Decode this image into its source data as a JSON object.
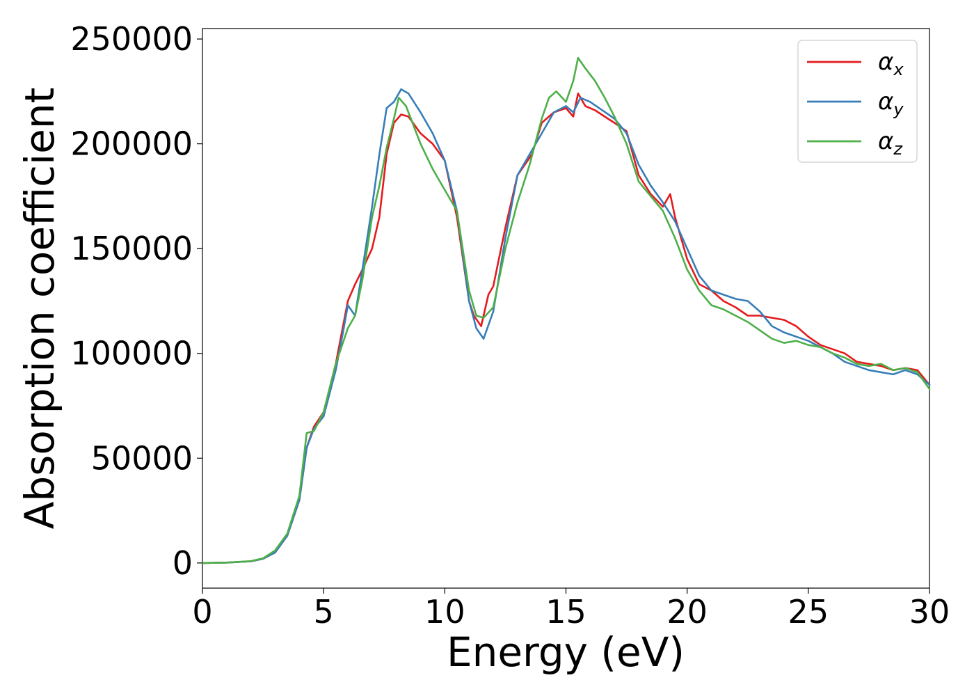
{
  "chart_data": {
    "type": "line",
    "xlabel": "Energy (eV)",
    "ylabel": "Absorption coefficient",
    "xlim": [
      0,
      30
    ],
    "ylim": [
      -12000,
      255000
    ],
    "xticks": [
      0,
      5,
      10,
      15,
      20,
      25,
      30
    ],
    "xtick_labels": [
      "0",
      "5",
      "10",
      "15",
      "20",
      "25",
      "30"
    ],
    "yticks": [
      0,
      50000,
      100000,
      150000,
      200000,
      250000
    ],
    "ytick_labels": [
      "0",
      "50000",
      "100000",
      "150000",
      "200000",
      "250000"
    ],
    "grid": false,
    "legend_position": "top-right",
    "series": [
      {
        "name": "α_x",
        "label_main": "α",
        "label_sub": "x",
        "color": "#e41a1c",
        "x": [
          0,
          1,
          2,
          2.5,
          3,
          3.5,
          4,
          4.3,
          4.6,
          5,
          5.5,
          6,
          6.3,
          6.6,
          7,
          7.3,
          7.6,
          7.9,
          8.2,
          8.5,
          9,
          9.5,
          10,
          10.5,
          11,
          11.2,
          11.5,
          11.8,
          12,
          12.5,
          13,
          13.3,
          13.6,
          14,
          14.5,
          15,
          15.3,
          15.5,
          15.8,
          16.2,
          16.6,
          17,
          17.5,
          18,
          18.5,
          19,
          19.3,
          19.5,
          20,
          20.5,
          21,
          21.5,
          22,
          22.5,
          23,
          23.5,
          24,
          24.5,
          25,
          25.5,
          26,
          26.5,
          27,
          27.5,
          28,
          28.5,
          29,
          29.5,
          30
        ],
        "y": [
          0,
          200,
          800,
          2000,
          5000,
          13000,
          30000,
          55000,
          65000,
          72000,
          95000,
          125000,
          133000,
          140000,
          150000,
          165000,
          195000,
          210000,
          214000,
          213000,
          205000,
          200000,
          192000,
          165000,
          125000,
          118000,
          113000,
          128000,
          132000,
          160000,
          185000,
          190000,
          195000,
          210000,
          215000,
          217000,
          213000,
          224000,
          218000,
          216000,
          213000,
          210000,
          206000,
          185000,
          176000,
          170000,
          176000,
          165000,
          145000,
          133000,
          130000,
          125000,
          122000,
          118000,
          118000,
          117000,
          116000,
          113000,
          108000,
          104000,
          102000,
          100000,
          96000,
          95000,
          94000,
          92000,
          93000,
          92000,
          85000
        ]
      },
      {
        "name": "α_y",
        "label_main": "α",
        "label_sub": "y",
        "color": "#377eb8",
        "x": [
          0,
          1,
          2,
          2.5,
          3,
          3.5,
          4,
          4.3,
          4.6,
          5,
          5.5,
          5.8,
          6,
          6.3,
          6.6,
          7,
          7.3,
          7.6,
          7.9,
          8.2,
          8.5,
          9,
          9.5,
          10,
          10.5,
          11,
          11.3,
          11.6,
          12,
          12.5,
          13,
          13.5,
          14,
          14.5,
          15,
          15.3,
          15.6,
          16,
          16.5,
          17,
          17.5,
          18,
          18.5,
          19,
          19.5,
          20,
          20.5,
          21,
          21.5,
          22,
          22.5,
          23,
          23.5,
          24,
          24.5,
          25,
          25.5,
          26,
          26.5,
          27,
          27.5,
          28,
          28.5,
          29,
          29.5,
          30
        ],
        "y": [
          0,
          200,
          800,
          2000,
          5000,
          13000,
          30000,
          55000,
          64000,
          70000,
          92000,
          110000,
          123000,
          118000,
          140000,
          170000,
          195000,
          217000,
          220000,
          226000,
          224000,
          215000,
          205000,
          192000,
          168000,
          125000,
          112000,
          107000,
          120000,
          155000,
          185000,
          195000,
          205000,
          215000,
          218000,
          215000,
          222000,
          220000,
          216000,
          212000,
          205000,
          190000,
          180000,
          172000,
          163000,
          150000,
          137000,
          130000,
          128000,
          126000,
          125000,
          120000,
          113000,
          110000,
          108000,
          106000,
          103000,
          100000,
          96000,
          94000,
          92000,
          91000,
          90000,
          92000,
          90000,
          85000
        ]
      },
      {
        "name": "α_z",
        "label_main": "α",
        "label_sub": "z",
        "color": "#4daf4a",
        "x": [
          0,
          1,
          2,
          2.5,
          3,
          3.5,
          4,
          4.3,
          4.6,
          5,
          5.5,
          6,
          6.3,
          6.6,
          7,
          7.3,
          7.6,
          7.9,
          8.1,
          8.4,
          9,
          9.5,
          10,
          10.5,
          11,
          11.3,
          11.6,
          12,
          12.5,
          13,
          13.5,
          14,
          14.3,
          14.6,
          15,
          15.3,
          15.5,
          15.8,
          16.2,
          16.6,
          17,
          17.5,
          18,
          18.5,
          19,
          19.5,
          20,
          20.5,
          21,
          21.5,
          22,
          22.5,
          23,
          23.5,
          24,
          24.5,
          25,
          25.5,
          26,
          26.5,
          27,
          27.5,
          28,
          28.5,
          29,
          29.5,
          30
        ],
        "y": [
          0,
          200,
          900,
          2200,
          6000,
          14000,
          32000,
          62000,
          63000,
          72000,
          95000,
          112000,
          118000,
          135000,
          165000,
          180000,
          198000,
          212000,
          222000,
          218000,
          200000,
          188000,
          178000,
          168000,
          130000,
          118000,
          117000,
          122000,
          150000,
          172000,
          190000,
          212000,
          222000,
          225000,
          220000,
          230000,
          241000,
          236000,
          230000,
          222000,
          213000,
          200000,
          182000,
          175000,
          168000,
          155000,
          140000,
          130000,
          123000,
          121000,
          118000,
          115000,
          111000,
          107000,
          105000,
          106000,
          104000,
          103000,
          100000,
          98000,
          95000,
          94000,
          95000,
          92000,
          93000,
          91000,
          83000
        ]
      }
    ]
  }
}
